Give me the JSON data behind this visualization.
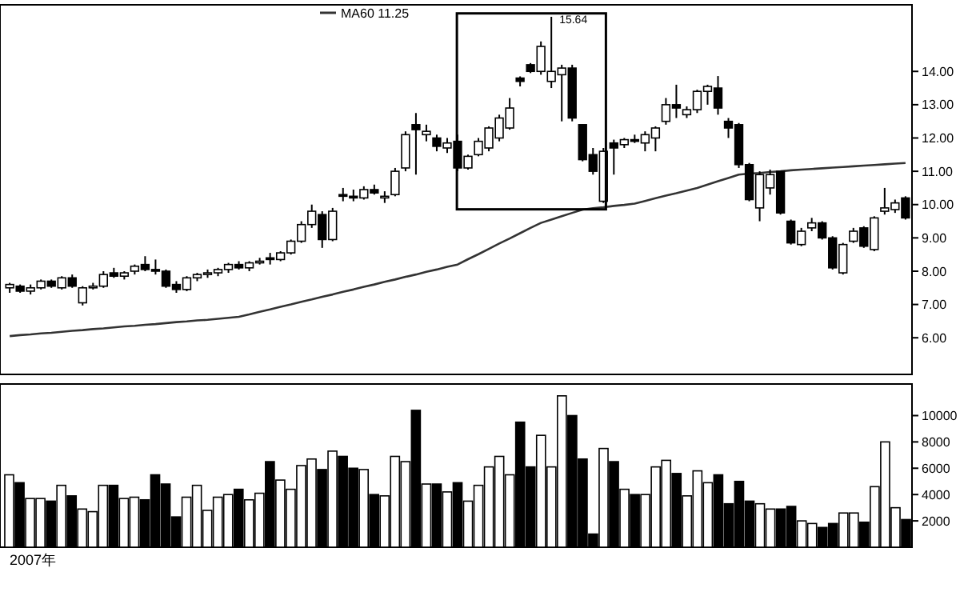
{
  "chart_data": [
    {
      "type": "candlestick",
      "categories": [
        null,
        null,
        null,
        null,
        null,
        null,
        null,
        null,
        null,
        null,
        null,
        null,
        null,
        null,
        null,
        null,
        null,
        null,
        null,
        null,
        null,
        null,
        null,
        null,
        null,
        null,
        null,
        null,
        null,
        null,
        null,
        null,
        null,
        null,
        null,
        null,
        null,
        null,
        null,
        null,
        null,
        null,
        null,
        null,
        null,
        null,
        null,
        null,
        null,
        null,
        null,
        null,
        null,
        null,
        null,
        null,
        null,
        null,
        null,
        null,
        null,
        null,
        null,
        null,
        null,
        null,
        null,
        null,
        null,
        null,
        null,
        null,
        null,
        null,
        null,
        null,
        null,
        null,
        null,
        null,
        null,
        null,
        null,
        null,
        null,
        null,
        null
      ],
      "ohlc": [
        [
          7.5,
          7.65,
          7.35,
          7.6
        ],
        [
          7.55,
          7.6,
          7.35,
          7.4
        ],
        [
          7.4,
          7.6,
          7.3,
          7.5
        ],
        [
          7.5,
          7.75,
          7.45,
          7.7
        ],
        [
          7.7,
          7.75,
          7.5,
          7.55
        ],
        [
          7.5,
          7.85,
          7.45,
          7.8
        ],
        [
          7.8,
          7.9,
          7.5,
          7.55
        ],
        [
          7.05,
          7.55,
          6.97,
          7.5
        ],
        [
          7.5,
          7.65,
          7.45,
          7.55
        ],
        [
          7.55,
          8.0,
          7.5,
          7.9
        ],
        [
          7.95,
          8.1,
          7.8,
          7.85
        ],
        [
          7.85,
          8.0,
          7.75,
          7.95
        ],
        [
          8.0,
          8.2,
          7.9,
          8.15
        ],
        [
          8.2,
          8.45,
          8.0,
          8.05
        ],
        [
          8.05,
          8.35,
          7.9,
          8.0
        ],
        [
          8.0,
          8.05,
          7.5,
          7.55
        ],
        [
          7.6,
          7.7,
          7.35,
          7.45
        ],
        [
          7.45,
          7.85,
          7.4,
          7.8
        ],
        [
          7.8,
          7.95,
          7.7,
          7.9
        ],
        [
          7.9,
          8.05,
          7.8,
          7.95
        ],
        [
          7.95,
          8.1,
          7.85,
          8.05
        ],
        [
          8.05,
          8.25,
          7.95,
          8.2
        ],
        [
          8.2,
          8.3,
          8.05,
          8.1
        ],
        [
          8.1,
          8.3,
          8.0,
          8.25
        ],
        [
          8.25,
          8.4,
          8.2,
          8.3
        ],
        [
          8.4,
          8.55,
          8.2,
          8.35
        ],
        [
          8.35,
          8.6,
          8.3,
          8.55
        ],
        [
          8.55,
          8.95,
          8.5,
          8.9
        ],
        [
          8.9,
          9.5,
          8.85,
          9.4
        ],
        [
          9.4,
          10.0,
          9.3,
          9.8
        ],
        [
          9.7,
          9.8,
          8.7,
          8.95
        ],
        [
          8.95,
          9.9,
          8.9,
          9.8
        ],
        [
          10.3,
          10.5,
          10.1,
          10.25
        ],
        [
          10.25,
          10.45,
          10.1,
          10.2
        ],
        [
          10.2,
          10.55,
          10.15,
          10.45
        ],
        [
          10.45,
          10.6,
          10.3,
          10.35
        ],
        [
          10.2,
          10.4,
          10.05,
          10.25
        ],
        [
          10.3,
          11.1,
          10.25,
          11.0
        ],
        [
          11.1,
          12.2,
          11.0,
          12.1
        ],
        [
          12.4,
          12.75,
          10.9,
          12.25
        ],
        [
          12.1,
          12.4,
          11.9,
          12.2
        ],
        [
          12.0,
          12.1,
          11.6,
          11.75
        ],
        [
          11.7,
          12.0,
          11.55,
          11.85
        ],
        [
          11.9,
          12.1,
          11.0,
          11.1
        ],
        [
          11.1,
          11.5,
          11.05,
          11.45
        ],
        [
          11.5,
          12.0,
          11.45,
          11.9
        ],
        [
          11.7,
          12.35,
          11.6,
          12.3
        ],
        [
          12.0,
          12.7,
          11.9,
          12.6
        ],
        [
          12.3,
          13.2,
          12.25,
          12.9
        ],
        [
          13.8,
          13.85,
          13.55,
          13.7
        ],
        [
          14.2,
          14.25,
          13.95,
          14.0
        ],
        [
          14.0,
          14.9,
          13.9,
          14.75
        ],
        [
          13.7,
          15.64,
          13.5,
          14.0
        ],
        [
          13.9,
          14.2,
          12.5,
          14.1
        ],
        [
          14.1,
          14.2,
          12.5,
          12.6
        ],
        [
          12.4,
          12.4,
          11.3,
          11.35
        ],
        [
          11.5,
          11.7,
          10.9,
          11.0
        ],
        [
          10.1,
          11.7,
          10.05,
          11.6
        ],
        [
          11.85,
          11.95,
          10.9,
          11.7
        ],
        [
          11.8,
          12.0,
          11.7,
          11.95
        ],
        [
          11.95,
          12.1,
          11.85,
          11.9
        ],
        [
          11.85,
          12.2,
          11.6,
          12.1
        ],
        [
          12.0,
          12.35,
          11.6,
          12.3
        ],
        [
          12.5,
          13.2,
          12.4,
          13.0
        ],
        [
          13.0,
          13.6,
          12.6,
          12.9
        ],
        [
          12.7,
          12.95,
          12.6,
          12.85
        ],
        [
          12.85,
          13.45,
          12.75,
          13.4
        ],
        [
          13.4,
          13.6,
          13.0,
          13.55
        ],
        [
          13.5,
          13.86,
          12.7,
          12.9
        ],
        [
          12.5,
          12.6,
          12.0,
          12.3
        ],
        [
          12.4,
          12.45,
          11.1,
          11.2
        ],
        [
          11.2,
          11.25,
          10.1,
          10.15
        ],
        [
          9.9,
          11.0,
          9.5,
          10.9
        ],
        [
          10.5,
          11.05,
          10.3,
          10.9
        ],
        [
          11.0,
          11.0,
          9.7,
          9.75
        ],
        [
          9.5,
          9.55,
          8.8,
          8.85
        ],
        [
          8.8,
          9.3,
          8.75,
          9.2
        ],
        [
          9.3,
          9.6,
          9.2,
          9.45
        ],
        [
          9.45,
          9.5,
          8.95,
          9.0
        ],
        [
          9.0,
          9.05,
          8.05,
          8.1
        ],
        [
          7.95,
          8.85,
          7.9,
          8.8
        ],
        [
          8.9,
          9.3,
          8.85,
          9.2
        ],
        [
          9.3,
          9.35,
          8.7,
          8.75
        ],
        [
          8.65,
          9.65,
          8.6,
          9.6
        ],
        [
          9.8,
          10.5,
          9.7,
          9.9
        ],
        [
          9.85,
          10.15,
          9.75,
          10.05
        ],
        [
          10.2,
          10.25,
          9.55,
          9.6
        ]
      ],
      "series": [
        {
          "type": "line",
          "name": "MA60 11.25",
          "color": "#333333",
          "values": [
            6.05,
            6.08,
            6.1,
            6.13,
            6.15,
            6.18,
            6.21,
            6.23,
            6.26,
            6.28,
            6.31,
            6.34,
            6.36,
            6.39,
            6.41,
            6.44,
            6.47,
            6.49,
            6.52,
            6.54,
            6.57,
            6.6,
            6.63,
            6.7,
            6.78,
            6.85,
            6.93,
            7.0,
            7.08,
            7.15,
            7.23,
            7.3,
            7.38,
            7.45,
            7.53,
            7.6,
            7.68,
            7.75,
            7.83,
            7.9,
            7.98,
            8.05,
            8.13,
            8.2,
            8.36,
            8.51,
            8.67,
            8.83,
            8.98,
            9.14,
            9.3,
            9.45,
            9.55,
            9.65,
            9.75,
            9.85,
            9.89,
            9.92,
            9.96,
            9.99,
            10.03,
            10.11,
            10.19,
            10.27,
            10.34,
            10.42,
            10.5,
            10.6,
            10.7,
            10.8,
            10.9,
            10.93,
            10.95,
            10.98,
            11.0,
            11.03,
            11.05,
            11.07,
            11.09,
            11.11,
            11.13,
            11.15,
            11.17,
            11.19,
            11.21,
            11.23,
            11.25
          ]
        }
      ],
      "ylim": [
        4.9,
        16.0
      ],
      "yticks": [
        {
          "value": 6,
          "label": "6.00"
        },
        {
          "value": 7,
          "label": "7.00"
        },
        {
          "value": 8,
          "label": "8.00"
        },
        {
          "value": 9,
          "label": "9.00"
        },
        {
          "value": 10,
          "label": "10.00"
        },
        {
          "value": 11,
          "label": "11.00"
        },
        {
          "value": 12,
          "label": "12.00"
        },
        {
          "value": 13,
          "label": "13.00"
        },
        {
          "value": 14,
          "label": "14.00"
        }
      ],
      "legend": "top left",
      "tick_labels": "y",
      "annotations": [
        "15.64"
      ]
    },
    {
      "type": "bar",
      "categories": [
        null,
        null,
        null,
        null,
        null,
        null,
        null,
        null,
        null,
        null,
        null,
        null,
        null,
        null,
        null,
        null,
        null,
        null,
        null,
        null,
        null,
        null,
        null,
        null,
        null,
        null,
        null,
        null,
        null,
        null,
        null,
        null,
        null,
        null,
        null,
        null,
        null,
        null,
        null,
        null,
        null,
        null,
        null,
        null,
        null,
        null,
        null,
        null,
        null,
        null,
        null,
        null,
        null,
        null,
        null,
        null,
        null,
        null,
        null,
        null,
        null,
        null,
        null,
        null,
        null,
        null,
        null,
        null,
        null,
        null,
        null,
        null,
        null,
        null,
        null,
        null,
        null,
        null,
        null,
        null,
        null,
        null,
        null,
        null,
        null,
        null,
        null
      ],
      "values": [
        5500,
        4900,
        3700,
        3700,
        3500,
        4700,
        3900,
        2900,
        2700,
        4700,
        4700,
        3700,
        3800,
        3600,
        5500,
        4800,
        2300,
        3800,
        4700,
        2800,
        3800,
        4000,
        4400,
        3600,
        4100,
        6500,
        5100,
        4400,
        6200,
        6700,
        5900,
        7300,
        6900,
        6000,
        5900,
        4000,
        3900,
        6900,
        6500,
        10400,
        4800,
        4800,
        4200,
        4900,
        3500,
        4700,
        6100,
        6900,
        5500,
        9500,
        6100,
        8500,
        6100,
        11500,
        10000,
        6700,
        1000,
        7500,
        6500,
        4400,
        4000,
        4000,
        6100,
        6600,
        5600,
        3900,
        5800,
        4900,
        5500,
        3300,
        5000,
        3500,
        3300,
        2900,
        2900,
        3100,
        2000,
        1800,
        1500,
        1800,
        2600,
        2600,
        1900,
        4600,
        8000,
        3000,
        2100
      ],
      "colors": [
        "#ffffff",
        "#000000",
        "#ffffff",
        "#ffffff",
        "#000000",
        "#ffffff",
        "#000000",
        "#ffffff",
        "#ffffff",
        "#ffffff",
        "#000000",
        "#ffffff",
        "#ffffff",
        "#000000",
        "#000000",
        "#000000",
        "#000000",
        "#ffffff",
        "#ffffff",
        "#ffffff",
        "#ffffff",
        "#ffffff",
        "#000000",
        "#ffffff",
        "#ffffff",
        "#000000",
        "#ffffff",
        "#ffffff",
        "#ffffff",
        "#ffffff",
        "#000000",
        "#ffffff",
        "#000000",
        "#000000",
        "#ffffff",
        "#000000",
        "#ffffff",
        "#ffffff",
        "#ffffff",
        "#000000",
        "#ffffff",
        "#000000",
        "#ffffff",
        "#000000",
        "#ffffff",
        "#ffffff",
        "#ffffff",
        "#ffffff",
        "#ffffff",
        "#000000",
        "#000000",
        "#ffffff",
        "#ffffff",
        "#ffffff",
        "#000000",
        "#000000",
        "#000000",
        "#ffffff",
        "#000000",
        "#ffffff",
        "#000000",
        "#ffffff",
        "#ffffff",
        "#ffffff",
        "#000000",
        "#ffffff",
        "#ffffff",
        "#ffffff",
        "#000000",
        "#000000",
        "#000000",
        "#000000",
        "#ffffff",
        "#ffffff",
        "#000000",
        "#000000",
        "#ffffff",
        "#ffffff",
        "#000000",
        "#000000",
        "#ffffff",
        "#ffffff",
        "#000000",
        "#ffffff",
        "#ffffff",
        "#ffffff",
        "#000000"
      ],
      "ylim": [
        0,
        12400
      ],
      "yticks": [
        2000,
        4000,
        6000,
        8000,
        10000
      ],
      "tick_labels": "y",
      "annotations": [
        "2007年"
      ]
    }
  ]
}
